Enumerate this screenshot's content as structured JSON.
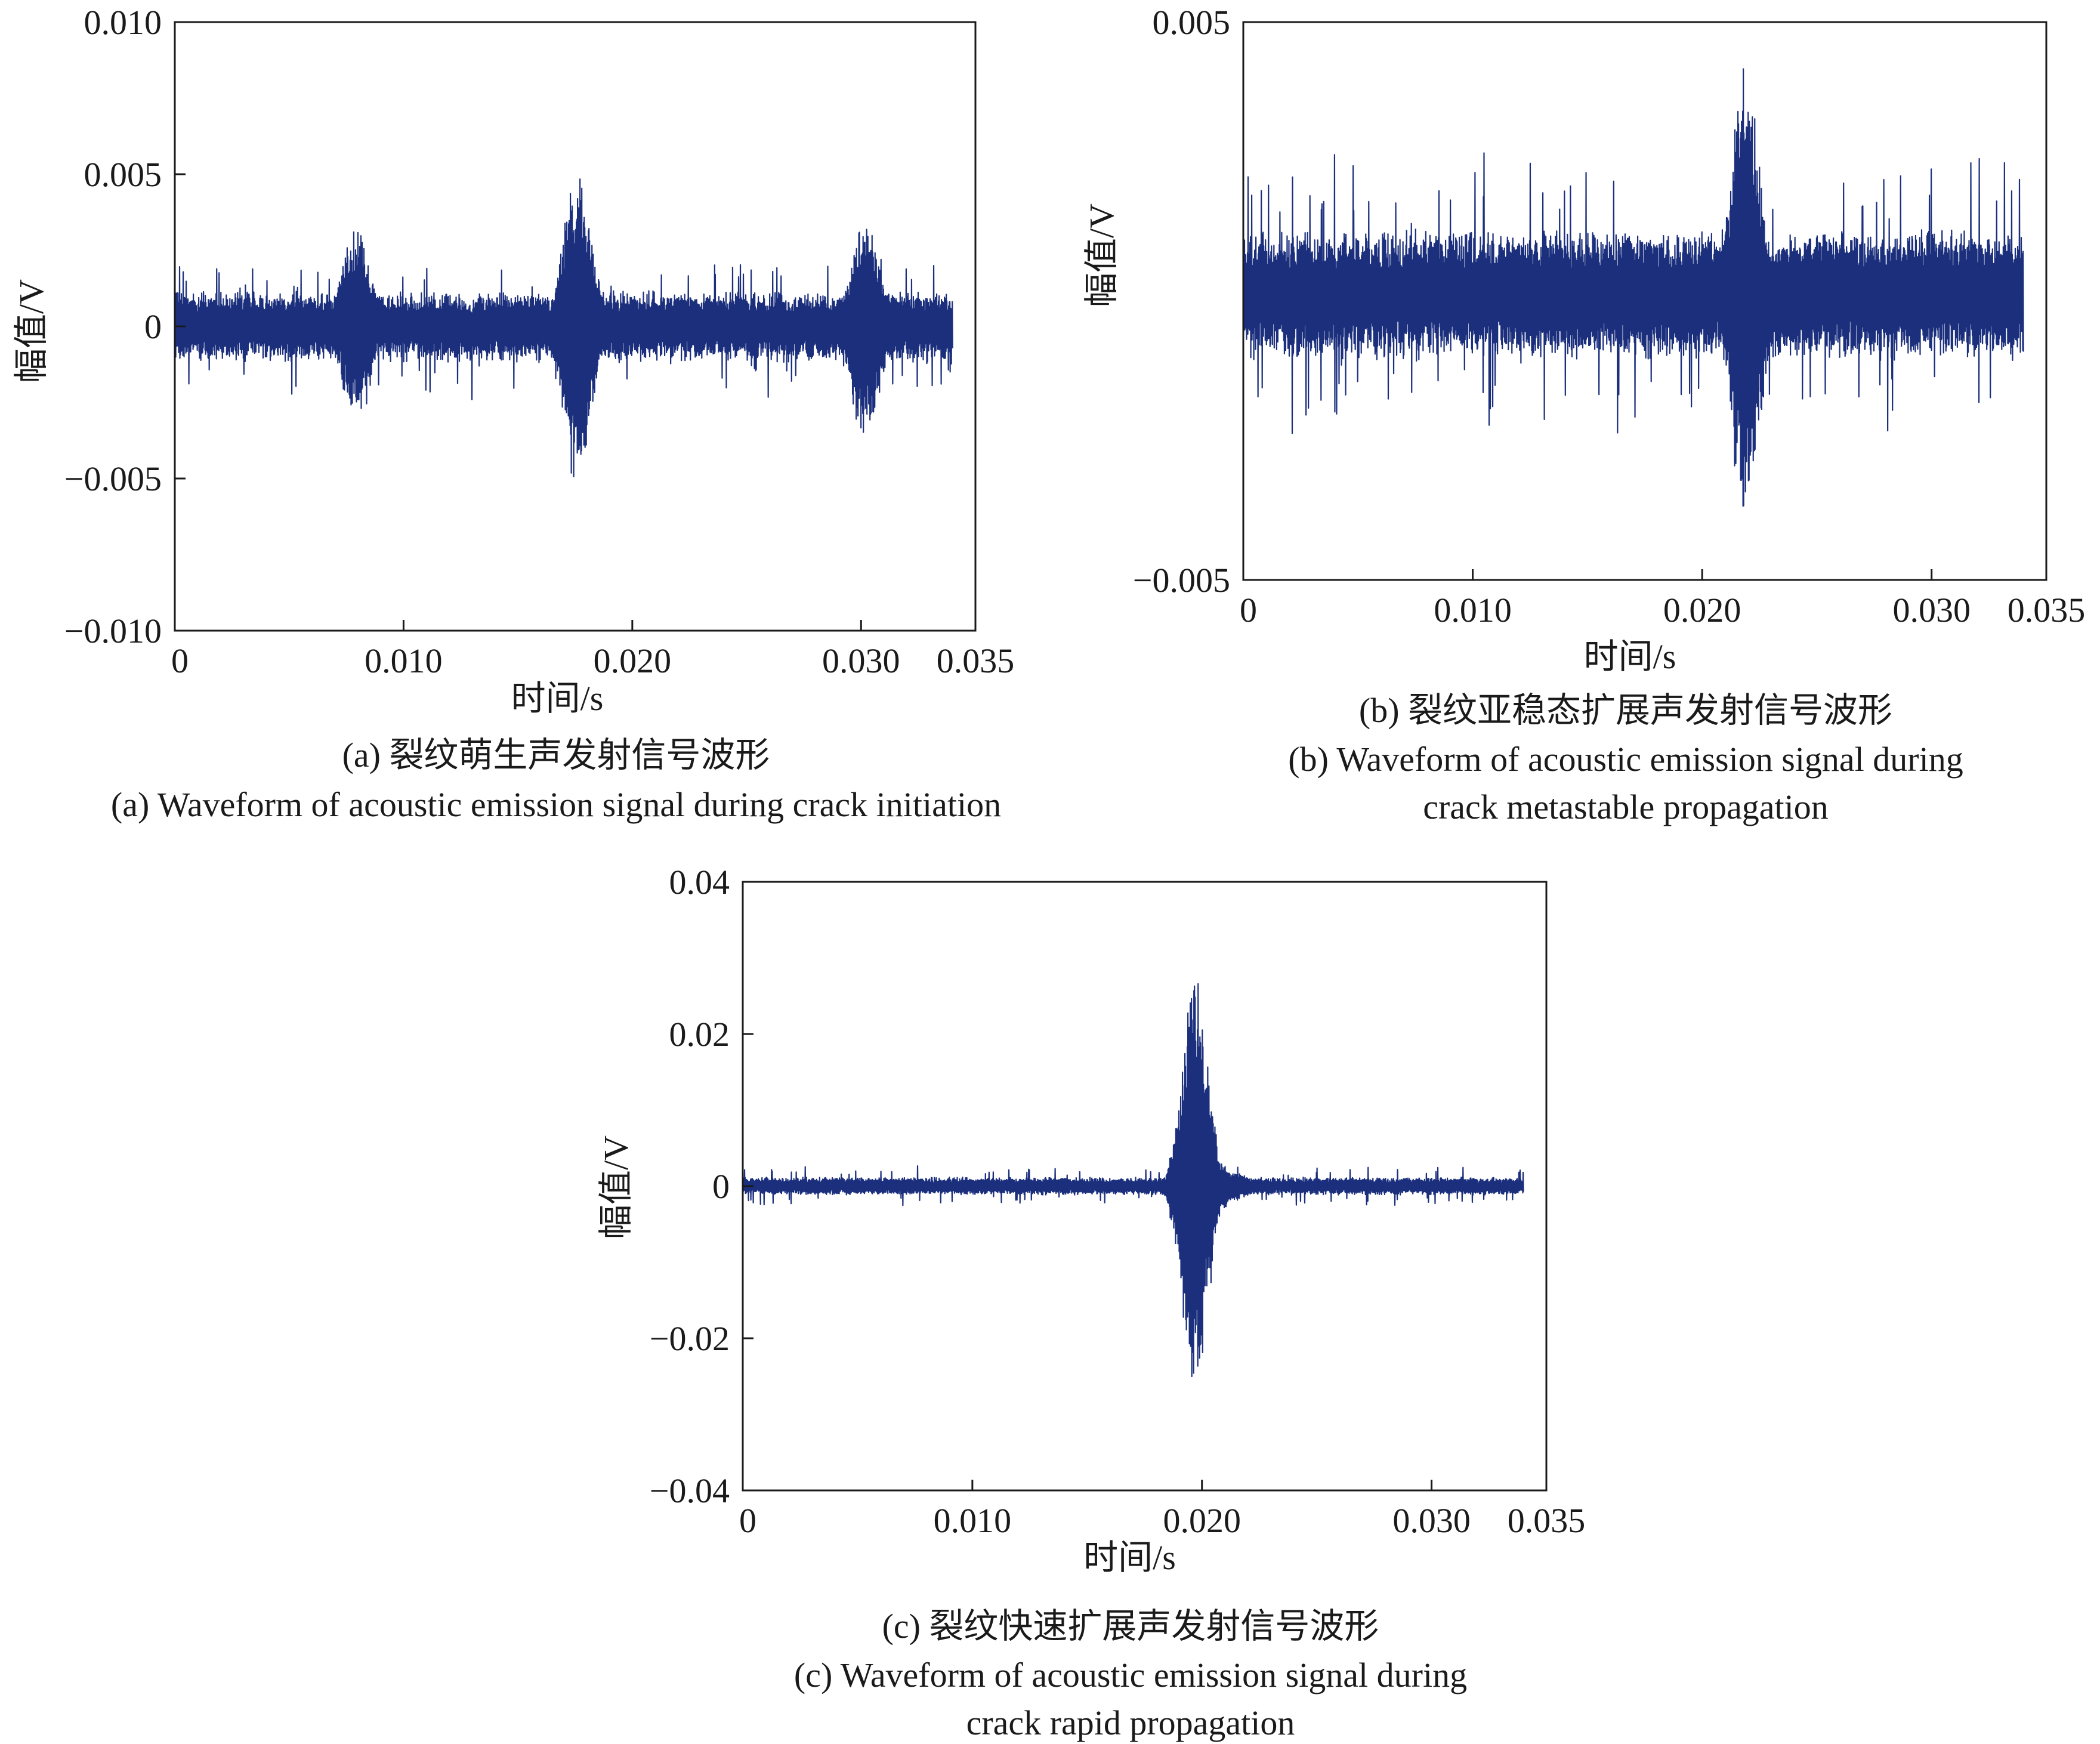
{
  "figure": {
    "background": "#ffffff",
    "line_color": "#1b2f7d",
    "axis_color": "#1a1a1a"
  },
  "chart_data": [
    {
      "id": "a",
      "type": "line",
      "xlabel": "时间/s",
      "ylabel": "幅值/V",
      "xlim": [
        0,
        0.035
      ],
      "ylim": [
        -0.01,
        0.01
      ],
      "xticks": [
        0,
        0.01,
        0.02,
        0.03,
        0.035
      ],
      "xtick_labels": [
        "0",
        "0.010",
        "0.020",
        "0.030",
        "0.035"
      ],
      "yticks": [
        0.01,
        0.005,
        0,
        -0.005,
        -0.01
      ],
      "ytick_labels": [
        "0.010",
        "0.005",
        "0",
        "−0.005",
        "−0.010"
      ],
      "caption_cn": "(a) 裂纹萌生声发射信号波形",
      "caption_en": [
        "(a) Waveform of acoustic emission signal during crack initiation"
      ],
      "series": [
        {
          "color": "#1b2f7d",
          "x_range": [
            0,
            0.034
          ],
          "baseline_amplitude": 0.0012,
          "peak_amplitude": 0.0026,
          "bursts": [
            {
              "t": 0.0079,
              "amplitude": 0.0034
            },
            {
              "t": 0.0176,
              "amplitude": 0.0054
            },
            {
              "t": 0.0302,
              "amplitude": 0.004
            }
          ]
        }
      ]
    },
    {
      "id": "b",
      "type": "line",
      "xlabel": "时间/s",
      "ylabel": "幅值/V",
      "xlim": [
        0,
        0.035
      ],
      "ylim": [
        -0.005,
        0.005
      ],
      "xticks": [
        0,
        0.01,
        0.02,
        0.03,
        0.035
      ],
      "xtick_labels": [
        "0",
        "0.010",
        "0.020",
        "0.030",
        "0.035"
      ],
      "yticks": [
        0.005,
        -0.005
      ],
      "ytick_labels": [
        "0.005",
        "−0.005"
      ],
      "caption_cn": "(b) 裂纹亚稳态扩展声发射信号波形",
      "caption_en": [
        "(b) Waveform of acoustic emission signal during",
        "crack metastable propagation"
      ],
      "series": [
        {
          "color": "#1b2f7d",
          "x_range": [
            0,
            0.034
          ],
          "offset": 0.0001,
          "baseline_amplitude": 0.0012,
          "peak_amplitude": 0.0027,
          "bursts": [
            {
              "t": 0.0219,
              "amplitude": 0.0044
            }
          ]
        }
      ]
    },
    {
      "id": "c",
      "type": "line",
      "xlabel": "时间/s",
      "ylabel": "幅值/V",
      "xlim": [
        0,
        0.035
      ],
      "ylim": [
        -0.04,
        0.04
      ],
      "xticks": [
        0,
        0.01,
        0.02,
        0.03,
        0.035
      ],
      "xtick_labels": [
        "0",
        "0.010",
        "0.020",
        "0.030",
        "0.035"
      ],
      "yticks": [
        0.04,
        0.02,
        0,
        -0.02,
        -0.04
      ],
      "ytick_labels": [
        "0.04",
        "0.02",
        "0",
        "−0.02",
        "−0.04"
      ],
      "caption_cn": "(c) 裂纹快速扩展声发射信号波形",
      "caption_en": [
        "(c) Waveform of acoustic emission signal during",
        "crack rapid propagation"
      ],
      "series": [
        {
          "color": "#1b2f7d",
          "x_range": [
            0,
            0.034
          ],
          "baseline_amplitude": 0.0012,
          "peak_amplitude": 0.0028,
          "bursts": [
            {
              "t": 0.0197,
              "amplitude": 0.03
            }
          ]
        }
      ]
    }
  ]
}
